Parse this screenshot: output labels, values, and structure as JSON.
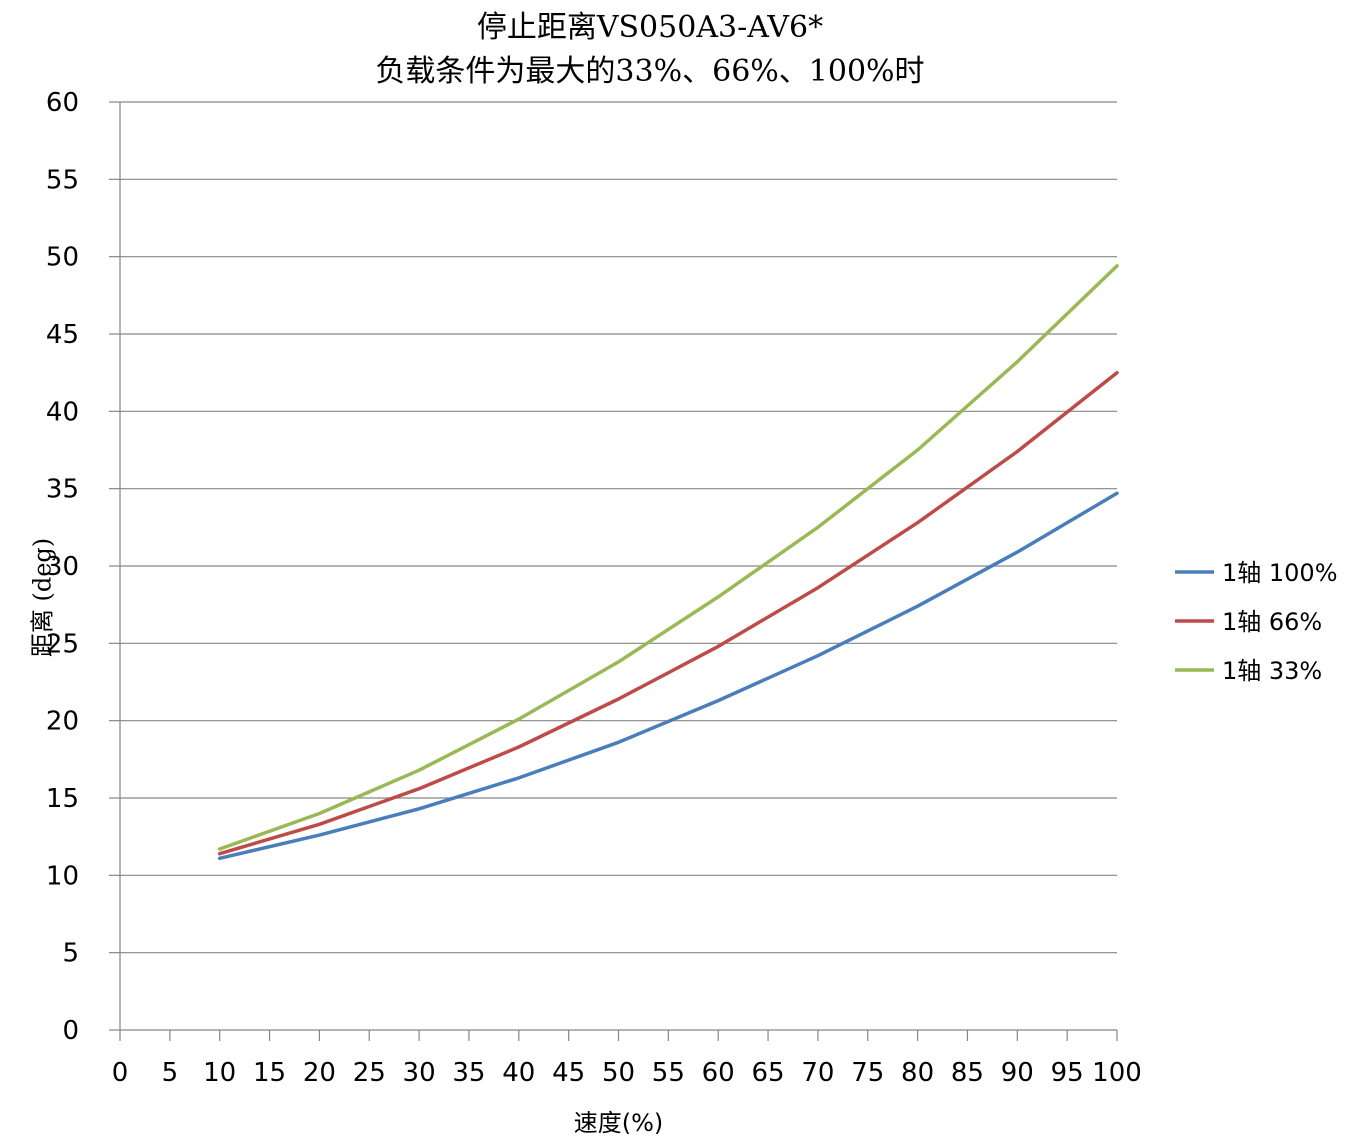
{
  "chart_data": {
    "type": "line",
    "title": "停止距离VS050A3-AV6*",
    "subtitle": "负载条件为最大的33%、66%、100%时",
    "xlabel": "速度(%)",
    "ylabel": "距离 (deg)",
    "xlim": [
      0,
      100
    ],
    "ylim": [
      0,
      60
    ],
    "x_ticks": [
      0,
      5,
      10,
      15,
      20,
      25,
      30,
      35,
      40,
      45,
      50,
      55,
      60,
      65,
      70,
      75,
      80,
      85,
      90,
      95,
      100
    ],
    "y_ticks": [
      0,
      5,
      10,
      15,
      20,
      25,
      30,
      35,
      40,
      45,
      50,
      55,
      60
    ],
    "grid": "horizontal",
    "legend_position": "right",
    "x": [
      10,
      20,
      30,
      40,
      50,
      60,
      70,
      80,
      90,
      100
    ],
    "series": [
      {
        "name": "1轴 100%",
        "color": "#4a7ebb",
        "values": [
          11.1,
          12.6,
          14.3,
          16.3,
          18.6,
          21.3,
          24.2,
          27.4,
          30.9,
          34.7
        ]
      },
      {
        "name": "1轴 66%",
        "color": "#be4b48",
        "values": [
          11.4,
          13.3,
          15.6,
          18.3,
          21.4,
          24.8,
          28.6,
          32.8,
          37.4,
          42.5
        ]
      },
      {
        "name": "1轴 33%",
        "color": "#98b954",
        "values": [
          11.7,
          14.0,
          16.8,
          20.1,
          23.8,
          28.0,
          32.5,
          37.5,
          43.2,
          49.4
        ]
      }
    ]
  }
}
